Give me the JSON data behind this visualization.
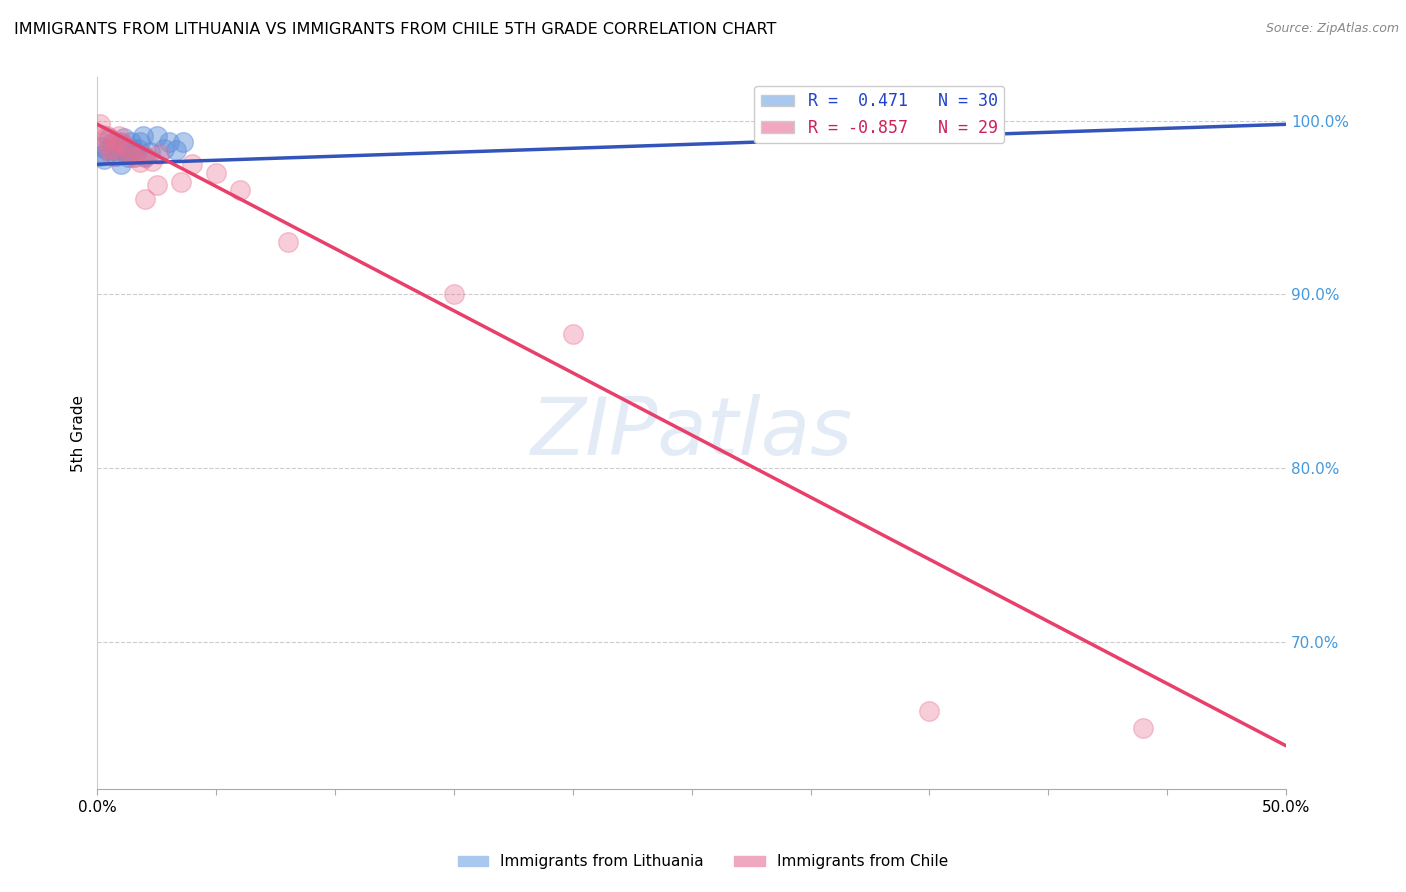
{
  "title": "IMMIGRANTS FROM LITHUANIA VS IMMIGRANTS FROM CHILE 5TH GRADE CORRELATION CHART",
  "source": "Source: ZipAtlas.com",
  "ylabel": "5th Grade",
  "xlim": [
    0.0,
    0.5
  ],
  "ylim": [
    0.615,
    1.025
  ],
  "xtick_positions": [
    0.0,
    0.05,
    0.1,
    0.15,
    0.2,
    0.25,
    0.3,
    0.35,
    0.4,
    0.45,
    0.5
  ],
  "xtick_labels": [
    "0.0%",
    "",
    "",
    "",
    "",
    "",
    "",
    "",
    "",
    "",
    "50.0%"
  ],
  "ytick_labels": [
    "100.0%",
    "90.0%",
    "80.0%",
    "70.0%"
  ],
  "yticks": [
    1.0,
    0.9,
    0.8,
    0.7
  ],
  "legend_r_entries": [
    {
      "label": "R =  0.471   N = 30",
      "facecolor": "#a8c8f0"
    },
    {
      "label": "R = -0.857   N = 29",
      "facecolor": "#f0a8c0"
    }
  ],
  "watermark": "ZIPatlas",
  "blue_scatter_color": "#5b8dd9",
  "pink_scatter_color": "#e87090",
  "blue_line_color": "#3355bb",
  "pink_line_color": "#e8406a",
  "lithuania_points": [
    [
      0.001,
      0.98
    ],
    [
      0.002,
      0.985
    ],
    [
      0.003,
      0.978
    ],
    [
      0.004,
      0.983
    ],
    [
      0.005,
      0.99
    ],
    [
      0.006,
      0.987
    ],
    [
      0.007,
      0.983
    ],
    [
      0.008,
      0.98
    ],
    [
      0.009,
      0.984
    ],
    [
      0.01,
      0.987
    ],
    [
      0.011,
      0.99
    ],
    [
      0.012,
      0.982
    ],
    [
      0.013,
      0.979
    ],
    [
      0.014,
      0.983
    ],
    [
      0.015,
      0.984
    ],
    [
      0.016,
      0.981
    ],
    [
      0.017,
      0.984
    ],
    [
      0.018,
      0.988
    ],
    [
      0.019,
      0.991
    ],
    [
      0.02,
      0.979
    ],
    [
      0.022,
      0.982
    ],
    [
      0.025,
      0.991
    ],
    [
      0.028,
      0.984
    ],
    [
      0.03,
      0.988
    ],
    [
      0.033,
      0.983
    ],
    [
      0.036,
      0.988
    ],
    [
      0.01,
      0.975
    ],
    [
      0.014,
      0.988
    ],
    [
      0.3,
      0.997
    ],
    [
      0.31,
      0.994
    ]
  ],
  "chile_points": [
    [
      0.001,
      0.998
    ],
    [
      0.002,
      0.992
    ],
    [
      0.003,
      0.987
    ],
    [
      0.004,
      0.991
    ],
    [
      0.005,
      0.984
    ],
    [
      0.006,
      0.98
    ],
    [
      0.007,
      0.984
    ],
    [
      0.008,
      0.988
    ],
    [
      0.009,
      0.991
    ],
    [
      0.01,
      0.988
    ],
    [
      0.012,
      0.985
    ],
    [
      0.013,
      0.982
    ],
    [
      0.015,
      0.979
    ],
    [
      0.016,
      0.979
    ],
    [
      0.018,
      0.976
    ],
    [
      0.02,
      0.98
    ],
    [
      0.023,
      0.977
    ],
    [
      0.026,
      0.981
    ],
    [
      0.035,
      0.965
    ],
    [
      0.06,
      0.96
    ],
    [
      0.08,
      0.93
    ],
    [
      0.15,
      0.9
    ],
    [
      0.2,
      0.877
    ],
    [
      0.02,
      0.955
    ],
    [
      0.04,
      0.975
    ],
    [
      0.05,
      0.97
    ],
    [
      0.025,
      0.963
    ],
    [
      0.35,
      0.66
    ],
    [
      0.44,
      0.65
    ]
  ],
  "blue_trend_x": [
    0.0,
    0.5
  ],
  "blue_trend_y": [
    0.975,
    0.998
  ],
  "pink_trend_x": [
    0.0,
    0.5
  ],
  "pink_trend_y": [
    0.998,
    0.64
  ]
}
